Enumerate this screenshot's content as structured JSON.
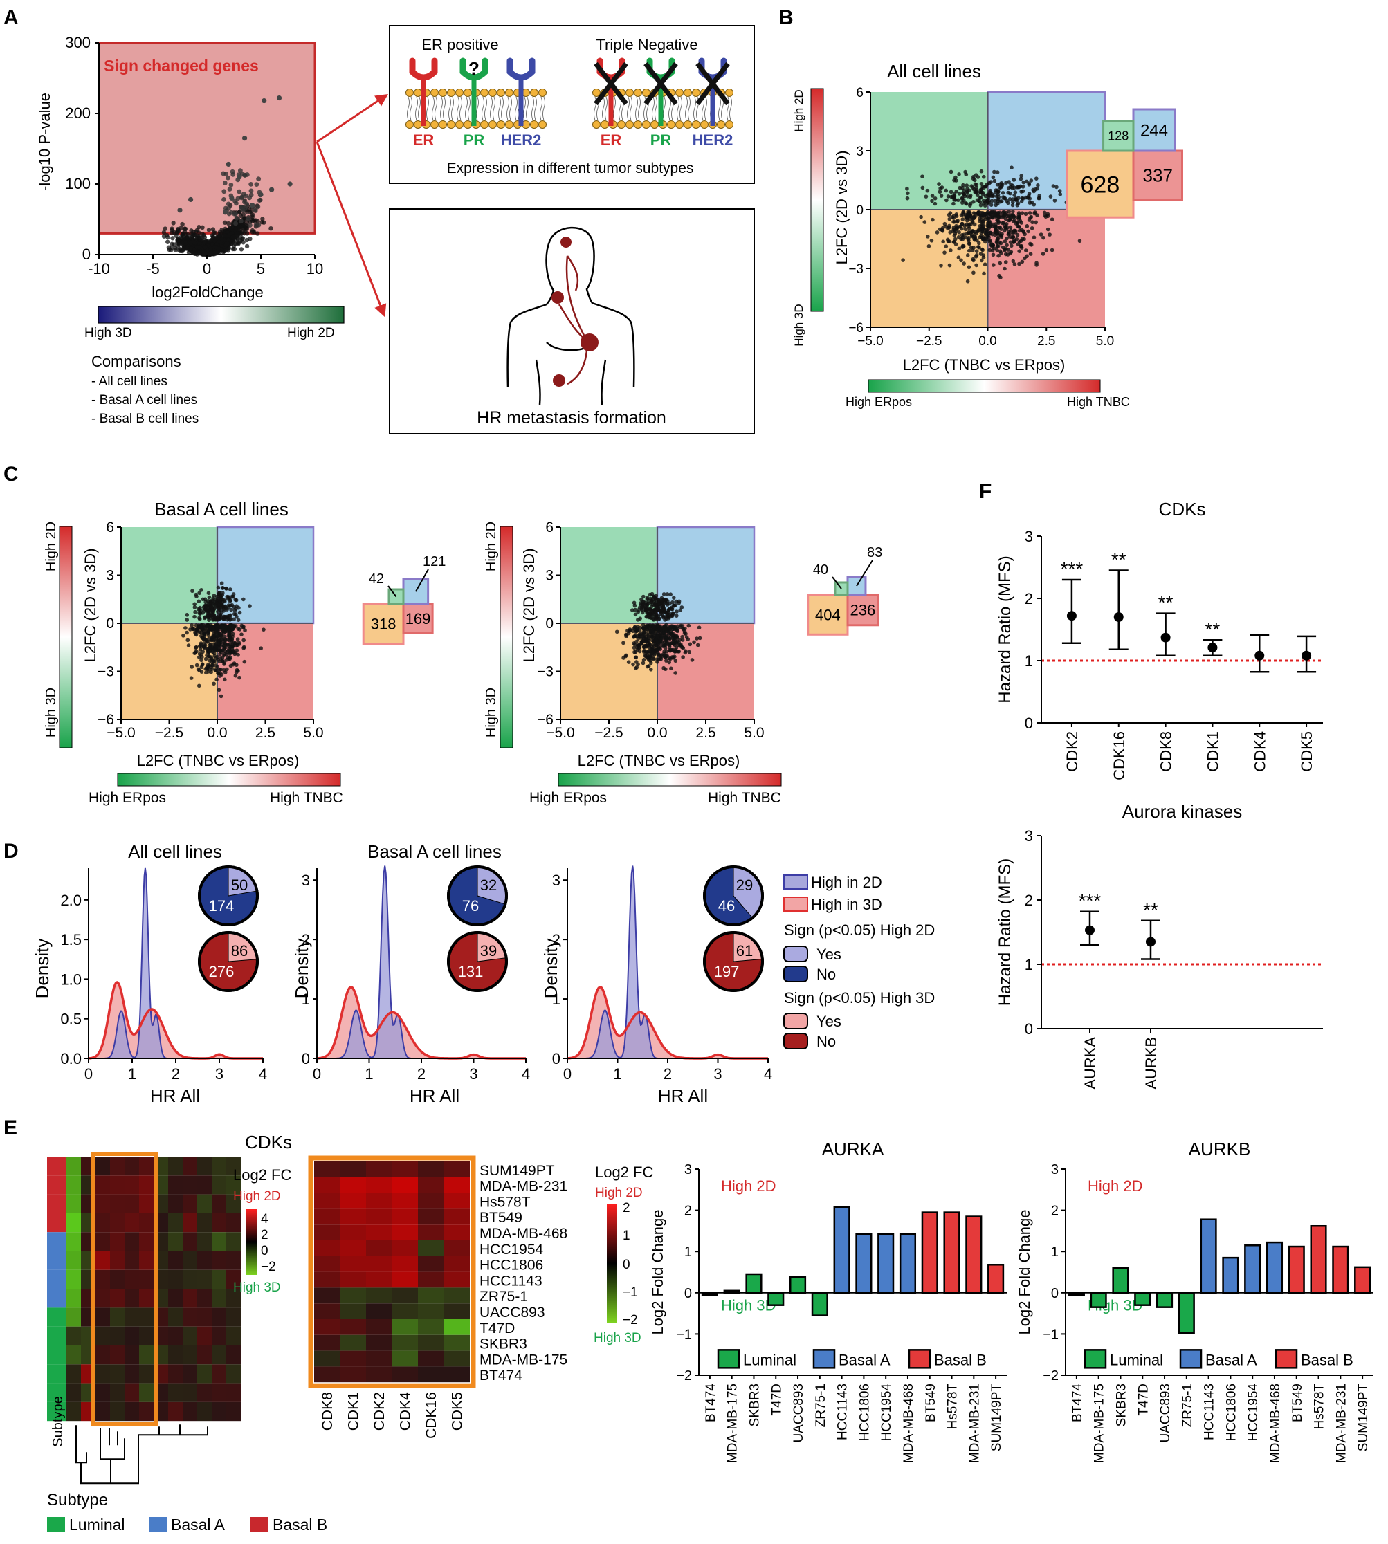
{
  "panel_letters": {
    "a": "A",
    "b": "B",
    "c": "C",
    "d": "D",
    "e": "E",
    "f": "F"
  },
  "colors": {
    "red": "#d42a2a",
    "green": "#19a34a",
    "blue": "#3d4aa6",
    "orange": "#f08a1e",
    "q_green": "#9bdbb5",
    "q_blue": "#a6cfe9",
    "q_orange": "#f7c98a",
    "q_red": "#ec9494",
    "luminal": "#1aa84a",
    "basalA": "#4a7dc8",
    "basalB": "#e43a3a"
  },
  "panelA": {
    "chart_data": {
      "type": "scatter",
      "title": "Sign changed genes",
      "xlabel": "log2FoldChange",
      "ylabel": "-log10 P-value",
      "xlim": [
        -10,
        10
      ],
      "ylim": [
        0,
        300
      ],
      "x_ticks": [
        "-10",
        "-5",
        "0",
        "5",
        "10"
      ],
      "y_ticks": [
        "0",
        "100",
        "200",
        "300"
      ],
      "significance_threshold": 30,
      "outlier_points": [
        [
          5.3,
          218
        ],
        [
          6.7,
          222
        ],
        [
          3.5,
          165
        ],
        [
          2.0,
          128
        ],
        [
          7.7,
          100
        ],
        [
          5.0,
          85
        ],
        [
          3.0,
          110
        ],
        [
          2.3,
          80
        ],
        [
          6.0,
          92
        ],
        [
          4.2,
          70
        ],
        [
          -1.5,
          78
        ],
        [
          -2.5,
          63
        ],
        [
          1.7,
          60
        ]
      ]
    },
    "colorbar_low": "High 3D",
    "colorbar_high": "High 2D",
    "comparisons_title": "Comparisons",
    "comparisons": [
      "- All cell lines",
      "- Basal A cell lines",
      "- Basal B cell lines"
    ],
    "er_positive": "ER positive",
    "triple_negative": "Triple Negative",
    "receptors": [
      "ER",
      "PR",
      "HER2"
    ],
    "expression_caption": "Expression in different tumor subtypes",
    "metastasis_caption": "HR metastasis formation"
  },
  "quadrants": {
    "xlabel": "L2FC (TNBC vs ERpos)",
    "ylabel": "L2FC (2D vs 3D)",
    "xlim": [
      -5.0,
      5.0
    ],
    "ylim": [
      -6,
      6
    ],
    "x_ticks": [
      "−5.0",
      "−2.5",
      "0.0",
      "2.5",
      "5.0"
    ],
    "y_ticks": [
      "6",
      "3",
      "0",
      "−3",
      "−6"
    ],
    "high_2d": "High 2D",
    "high_3d": "High 3D",
    "high_erpos": "High ERpos",
    "high_tnbc": "High TNBC",
    "plots": [
      {
        "title": "All cell lines",
        "counts": {
          "tl": "128",
          "tr": "244",
          "bl": "628",
          "br": "337"
        }
      },
      {
        "title": "Basal A cell lines",
        "counts": {
          "tl": "42",
          "tr": "121",
          "bl": "318",
          "br": "169"
        }
      },
      {
        "title": "",
        "counts": {
          "tl": "40",
          "tr": "83",
          "bl": "404",
          "br": "236"
        }
      }
    ]
  },
  "panelD": {
    "chart_data": {
      "type": "area",
      "xlabel": "HR All",
      "ylabel": "Density",
      "xlim": [
        0,
        4
      ],
      "x_ticks": [
        "0",
        "1",
        "2",
        "3",
        "4"
      ],
      "plots": [
        {
          "title": "All cell lines",
          "ylim": [
            0,
            2.4
          ],
          "y_ticks": [
            "0.0",
            "0.5",
            "1.0",
            "1.5",
            "2.0"
          ],
          "pie_2d": {
            "sig": "50",
            "non": "174"
          },
          "pie_3d": {
            "sig": "86",
            "non": "276"
          }
        },
        {
          "title": "Basal A cell lines",
          "ylim": [
            0,
            3.2
          ],
          "y_ticks": [
            "0",
            "1",
            "2",
            "3"
          ],
          "pie_2d": {
            "sig": "32",
            "non": "76"
          },
          "pie_3d": {
            "sig": "39",
            "non": "131"
          }
        },
        {
          "title": "",
          "ylim": [
            0,
            3.2
          ],
          "y_ticks": [
            "0",
            "1",
            "2",
            "3"
          ],
          "pie_2d": {
            "sig": "29",
            "non": "46"
          },
          "pie_3d": {
            "sig": "61",
            "non": "197"
          }
        }
      ]
    },
    "legend": {
      "high2d": "High in 2D",
      "high3d": "High in 3D",
      "sign2d": "Sign (p<0.05) High 2D",
      "sign3d": "Sign (p<0.05) High 3D",
      "yes": "Yes",
      "no": "No"
    }
  },
  "panelE": {
    "cdk_title": "CDKs",
    "legend_title": "Log2 FC",
    "high2d": "High 2D",
    "high3d": "High 3D",
    "scale_small": [
      "4",
      "2",
      "0",
      "−2"
    ],
    "scale_large": [
      "2",
      "1",
      "0",
      "−1",
      "−2"
    ],
    "subtype_label": "Subtype",
    "subtype_title": "Subtype",
    "legend_items": [
      "Luminal",
      "Basal A",
      "Basal B"
    ],
    "cell_lines": [
      "SUM149PT",
      "MDA-MB-231",
      "Hs578T",
      "BT549",
      "MDA-MB-468",
      "HCC1954",
      "HCC1806",
      "HCC1143",
      "ZR75-1",
      "UACC893",
      "T47D",
      "SKBR3",
      "MDA-MB-175",
      "BT474"
    ],
    "cdk_cols": [
      "CDK8",
      "CDK1",
      "CDK2",
      "CDK4",
      "CDK16",
      "CDK5"
    ],
    "heatmap_values": [
      [
        0.4,
        0.3,
        0.5,
        0.6,
        0.3,
        0.5
      ],
      [
        1.0,
        1.4,
        1.3,
        1.5,
        0.6,
        1.4
      ],
      [
        0.9,
        1.3,
        1.1,
        1.3,
        0.5,
        1.2
      ],
      [
        0.8,
        1.1,
        1.0,
        1.2,
        0.4,
        0.9
      ],
      [
        0.7,
        1.0,
        1.1,
        1.3,
        0.6,
        1.0
      ],
      [
        0.9,
        1.1,
        0.8,
        1.0,
        -0.3,
        0.7
      ],
      [
        0.7,
        1.0,
        1.0,
        1.2,
        0.3,
        0.8
      ],
      [
        0.6,
        0.9,
        1.0,
        1.3,
        0.5,
        0.9
      ],
      [
        0.1,
        -0.3,
        -0.2,
        -0.1,
        -0.4,
        -0.3
      ],
      [
        0.3,
        -0.2,
        0.0,
        -0.2,
        -0.3,
        -0.1
      ],
      [
        0.5,
        0.4,
        0.2,
        -0.8,
        -0.5,
        -1.5
      ],
      [
        0.2,
        -0.3,
        0.1,
        -0.4,
        -0.2,
        -0.5
      ],
      [
        -0.1,
        0.3,
        0.2,
        -0.6,
        0.1,
        -0.2
      ],
      [
        0.2,
        0.3,
        0.2,
        0.1,
        0.0,
        0.0
      ]
    ],
    "bar_charts": {
      "type": "bar",
      "ylabel": "Log2 Fold Change",
      "ylim": [
        -2,
        3
      ],
      "y_ticks": [
        "−2",
        "−1",
        "0",
        "1",
        "2",
        "3"
      ],
      "categories": [
        "BT474",
        "MDA-MB-175",
        "SKBR3",
        "T47D",
        "UACC893",
        "ZR75-1",
        "HCC1143",
        "HCC1806",
        "HCC1954",
        "MDA-MB-468",
        "BT549",
        "Hs578T",
        "MDA-MB-231",
        "SUM149PT"
      ],
      "subtypes": [
        "Luminal",
        "Luminal",
        "Luminal",
        "Luminal",
        "Luminal",
        "Luminal",
        "Basal A",
        "Basal A",
        "Basal A",
        "Basal A",
        "Basal B",
        "Basal B",
        "Basal B",
        "Basal B"
      ],
      "charts": [
        {
          "title": "AURKA",
          "values": [
            -0.05,
            0.05,
            0.45,
            -0.3,
            0.38,
            -0.55,
            2.08,
            1.42,
            1.42,
            1.42,
            1.95,
            1.95,
            1.85,
            0.68
          ]
        },
        {
          "title": "AURKB",
          "values": [
            -0.05,
            -0.35,
            0.6,
            -0.3,
            -0.35,
            -0.98,
            1.78,
            0.85,
            1.15,
            1.22,
            1.12,
            1.62,
            1.12,
            0.62
          ]
        }
      ]
    }
  },
  "panelF": {
    "chart_data": [
      {
        "type": "scatter",
        "title": "CDKs",
        "ylabel": "Hazard Ratio (MFS)",
        "ylim": [
          0,
          3
        ],
        "y_ticks": [
          "0",
          "1",
          "2",
          "3"
        ],
        "reference_line": 1.0,
        "categories": [
          "CDK2",
          "CDK16",
          "CDK8",
          "CDK1",
          "CDK4",
          "CDK5"
        ],
        "hr": [
          1.72,
          1.7,
          1.37,
          1.21,
          1.08,
          1.08
        ],
        "lower": [
          1.28,
          1.18,
          1.08,
          1.08,
          0.82,
          0.82
        ],
        "upper": [
          2.3,
          2.45,
          1.76,
          1.33,
          1.41,
          1.39
        ],
        "significance": [
          "***",
          "**",
          "**",
          "**",
          "",
          ""
        ]
      },
      {
        "type": "scatter",
        "title": "Aurora kinases",
        "ylabel": "Hazard Ratio (MFS)",
        "ylim": [
          0,
          3
        ],
        "y_ticks": [
          "0",
          "1",
          "2",
          "3"
        ],
        "reference_line": 1.0,
        "categories": [
          "AURKA",
          "AURKB"
        ],
        "hr": [
          1.53,
          1.35
        ],
        "lower": [
          1.3,
          1.08
        ],
        "upper": [
          1.82,
          1.68
        ],
        "significance": [
          "***",
          "**"
        ]
      }
    ]
  }
}
